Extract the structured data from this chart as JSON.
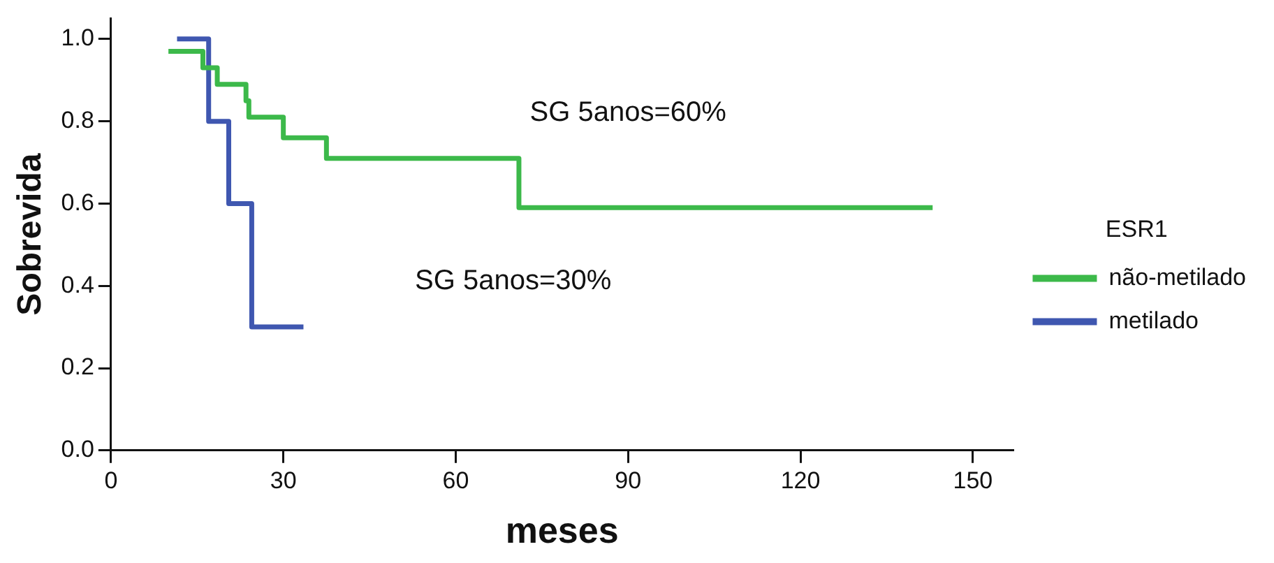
{
  "chart_data": {
    "type": "step",
    "xlabel": "meses",
    "ylabel": "Sobrevida",
    "legend_title": "ESR1",
    "legend": "right",
    "grid": false,
    "marker": "none",
    "line_style": "solid",
    "xlim": [
      0,
      157
    ],
    "xticks": [
      0,
      30,
      60,
      90,
      120,
      150
    ],
    "ylim": [
      0,
      1.05
    ],
    "yticks": [
      {
        "value": 0,
        "label": "0.0"
      },
      {
        "value": 0.2,
        "label": "0.2"
      },
      {
        "value": 0.4,
        "label": "0.4"
      },
      {
        "value": 0.6,
        "label": "0.6"
      },
      {
        "value": 0.8,
        "label": "0.8"
      },
      {
        "value": 1,
        "label": "1.0"
      }
    ],
    "annotations": [
      "SG 5anos=60%",
      "SG 5anos=30%"
    ],
    "series": [
      {
        "name": "não-metilado",
        "color": "#3cb94a",
        "x": [
          10,
          16,
          18.5,
          23.5,
          24,
          30,
          37.5,
          71,
          143
        ],
        "values": [
          0.97,
          0.93,
          0.89,
          0.85,
          0.81,
          0.76,
          0.71,
          0.59,
          0.59
        ]
      },
      {
        "name": "metilado",
        "color": "#3f57b0",
        "x": [
          11.5,
          17,
          20.5,
          24.5,
          33.5
        ],
        "values": [
          1.0,
          0.8,
          0.6,
          0.3,
          0.3
        ]
      }
    ]
  }
}
